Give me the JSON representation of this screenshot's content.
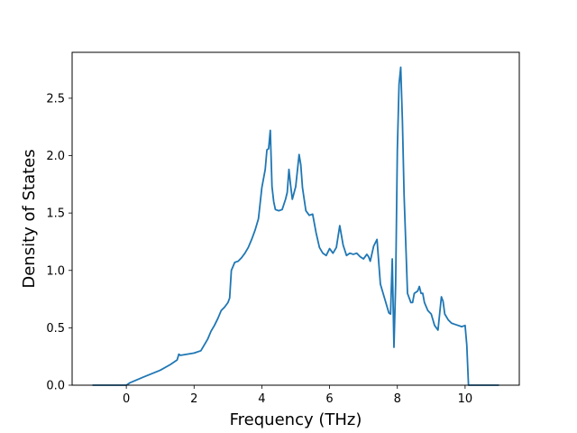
{
  "chart_data": {
    "type": "line",
    "title": "",
    "xlabel": "Frequency (THz)",
    "ylabel": "Density of States",
    "xlim": [
      -1.6,
      11.6
    ],
    "ylim": [
      0,
      2.9
    ],
    "xticks": [
      0,
      2,
      4,
      6,
      8,
      10
    ],
    "yticks": [
      0.0,
      0.5,
      1.0,
      1.5,
      2.0,
      2.5
    ],
    "xtick_labels": [
      "0",
      "2",
      "4",
      "6",
      "8",
      "10"
    ],
    "ytick_labels": [
      "0.0",
      "0.5",
      "1.0",
      "1.5",
      "2.0",
      "2.5"
    ],
    "grid": false,
    "legend": "none",
    "color": "#1f77b4",
    "series": [
      {
        "x": [
          -1.0,
          0.0,
          0.1,
          0.5,
          1.0,
          1.3,
          1.5,
          1.55,
          1.6,
          2.0,
          2.2,
          2.3,
          2.4,
          2.5,
          2.6,
          2.7,
          2.8,
          2.9,
          3.0,
          3.05,
          3.1,
          3.2,
          3.3,
          3.4,
          3.5,
          3.6,
          3.7,
          3.8,
          3.9,
          4.0,
          4.1,
          4.15,
          4.2,
          4.25,
          4.3,
          4.35,
          4.4,
          4.5,
          4.6,
          4.7,
          4.75,
          4.8,
          4.85,
          4.9,
          5.0,
          5.1,
          5.15,
          5.2,
          5.3,
          5.4,
          5.5,
          5.6,
          5.7,
          5.8,
          5.9,
          6.0,
          6.1,
          6.2,
          6.3,
          6.4,
          6.5,
          6.6,
          6.7,
          6.8,
          6.9,
          7.0,
          7.1,
          7.15,
          7.2,
          7.3,
          7.4,
          7.5,
          7.6,
          7.7,
          7.75,
          7.8,
          7.85,
          7.9,
          7.95,
          8.0,
          8.05,
          8.1,
          8.15,
          8.2,
          8.3,
          8.4,
          8.45,
          8.5,
          8.6,
          8.65,
          8.7,
          8.75,
          8.8,
          8.9,
          9.0,
          9.1,
          9.2,
          9.3,
          9.35,
          9.4,
          9.5,
          9.6,
          9.7,
          9.8,
          9.9,
          10.0,
          10.05,
          10.1,
          11.0
        ],
        "y": [
          0.0,
          0.0,
          0.02,
          0.07,
          0.13,
          0.18,
          0.22,
          0.27,
          0.26,
          0.28,
          0.3,
          0.35,
          0.4,
          0.47,
          0.52,
          0.58,
          0.65,
          0.68,
          0.72,
          0.76,
          1.0,
          1.07,
          1.08,
          1.11,
          1.15,
          1.2,
          1.27,
          1.35,
          1.45,
          1.72,
          1.88,
          2.05,
          2.06,
          2.22,
          1.73,
          1.6,
          1.53,
          1.52,
          1.53,
          1.62,
          1.68,
          1.88,
          1.74,
          1.62,
          1.73,
          2.01,
          1.92,
          1.72,
          1.52,
          1.48,
          1.49,
          1.33,
          1.2,
          1.15,
          1.13,
          1.19,
          1.15,
          1.2,
          1.39,
          1.22,
          1.13,
          1.15,
          1.14,
          1.15,
          1.12,
          1.1,
          1.14,
          1.12,
          1.08,
          1.21,
          1.27,
          0.88,
          0.78,
          0.68,
          0.63,
          0.62,
          1.1,
          0.33,
          0.88,
          2.05,
          2.62,
          2.77,
          2.3,
          1.65,
          0.8,
          0.72,
          0.72,
          0.8,
          0.82,
          0.86,
          0.8,
          0.8,
          0.72,
          0.65,
          0.62,
          0.52,
          0.48,
          0.77,
          0.73,
          0.62,
          0.57,
          0.54,
          0.53,
          0.52,
          0.51,
          0.52,
          0.35,
          0.0,
          0.0
        ]
      }
    ]
  }
}
